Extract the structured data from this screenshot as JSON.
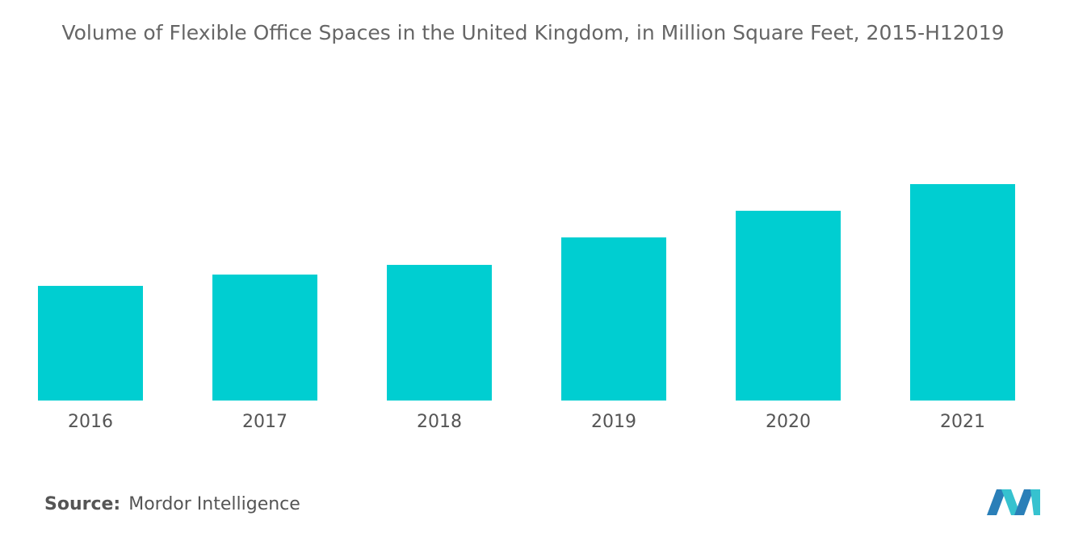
{
  "chart_data": {
    "type": "bar",
    "title": "Volume of Flexible Office Spaces in the United Kingdom, in Million Square Feet, 2015-H12019",
    "categories": [
      "2016",
      "2017",
      "2018",
      "2019",
      "2020",
      "2021"
    ],
    "values": [
      142,
      156,
      168,
      202,
      235,
      268
    ],
    "color": "#00ced1",
    "ylim": [
      0,
      300
    ],
    "source_label": "Source:",
    "source": "Mordor Intelligence"
  }
}
